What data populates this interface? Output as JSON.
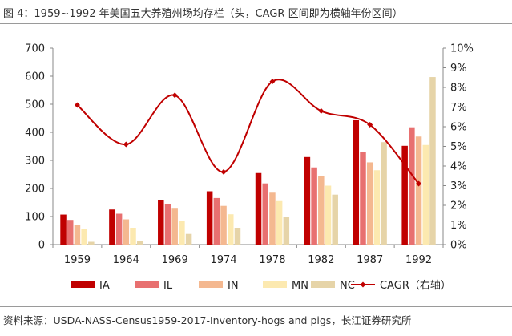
{
  "title": "图 4：1959~1992 年美国五大养殖州场均存栏（头，CAGR 区间即为横轴年份区间）",
  "source": "资料来源：USDA-NASS-Census1959-2017-Inventory-hogs and pigs，长江证券研究所",
  "chart_data": {
    "type": "bar",
    "categories": [
      "1959",
      "1964",
      "1969",
      "1974",
      "1978",
      "1982",
      "1987",
      "1992"
    ],
    "series": [
      {
        "name": "IA",
        "color": "#c00000",
        "values": [
          107,
          125,
          160,
          190,
          255,
          312,
          443,
          352
        ]
      },
      {
        "name": "IL",
        "color": "#e87070",
        "values": [
          88,
          110,
          145,
          166,
          218,
          275,
          330,
          418
        ]
      },
      {
        "name": "IN",
        "color": "#f4b890",
        "values": [
          70,
          90,
          128,
          138,
          185,
          243,
          293,
          385
        ]
      },
      {
        "name": "MN",
        "color": "#fce9b0",
        "values": [
          55,
          60,
          85,
          108,
          155,
          210,
          265,
          355
        ]
      },
      {
        "name": "NC",
        "color": "#e6d4a8",
        "values": [
          10,
          12,
          38,
          60,
          100,
          178,
          365,
          597
        ]
      }
    ],
    "line_series": {
      "name": "CAGR（右轴）",
      "color": "#c00000",
      "axis": "right",
      "values": [
        0.071,
        0.051,
        0.076,
        0.037,
        0.083,
        0.068,
        0.061,
        0.031
      ]
    },
    "y_left": {
      "min": 0,
      "max": 700,
      "ticks": [
        "0",
        "100",
        "200",
        "300",
        "400",
        "500",
        "600",
        "700"
      ]
    },
    "y_right": {
      "min": 0,
      "max": 0.1,
      "ticks": [
        "0%",
        "1%",
        "2%",
        "3%",
        "4%",
        "5%",
        "6%",
        "7%",
        "8%",
        "9%",
        "10%"
      ]
    },
    "grid": false,
    "legend_position": "bottom"
  }
}
